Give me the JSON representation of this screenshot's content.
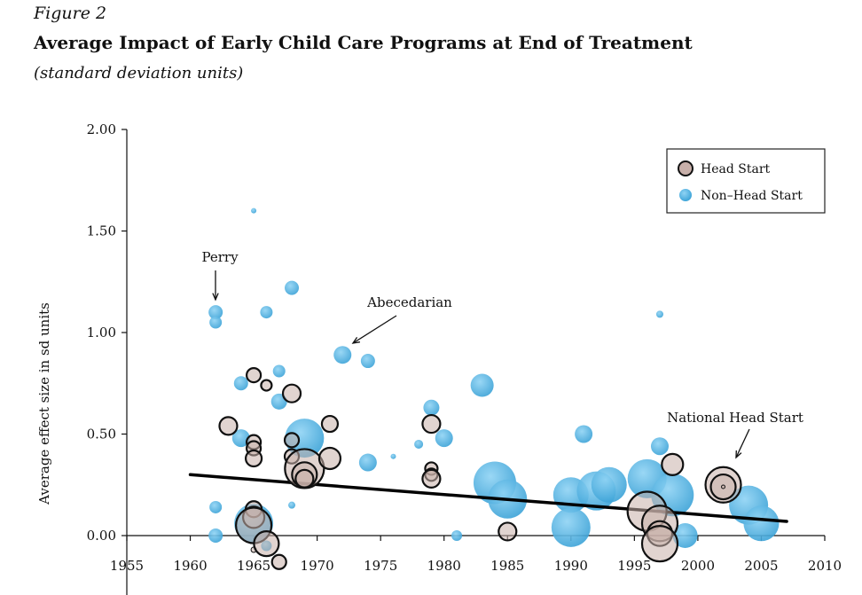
{
  "figure_label": "Figure 2",
  "title": "Average Impact of Early Child Care Programs at End of Treatment",
  "subtitle": "(standard deviation units)",
  "colors": {
    "head_start": "#c8b0aa",
    "non_head_start": "#4fb0e0",
    "trend": "#000000"
  },
  "chart_data": {
    "type": "scatter",
    "xlabel": "",
    "ylabel": "Average effect size in sd units",
    "xlim": [
      1955,
      2010
    ],
    "ylim": [
      0,
      2
    ],
    "xticks": [
      "1955",
      "1960",
      "1965",
      "1970",
      "1975",
      "1980",
      "1985",
      "1990",
      "1995",
      "2000",
      "2005",
      "2010"
    ],
    "yticks": [
      "0.00",
      "0.50",
      "1.00",
      "1.50",
      "2.00"
    ],
    "legend": {
      "position": "top-right",
      "entries": [
        "Head Start",
        "Non–Head Start"
      ]
    },
    "series": [
      {
        "name": "Non–Head Start",
        "points": [
          {
            "x": 1962,
            "y": 1.1,
            "size": 8
          },
          {
            "x": 1962,
            "y": 1.05,
            "size": 7
          },
          {
            "x": 1962,
            "y": 0.14,
            "size": 7
          },
          {
            "x": 1962,
            "y": 0.0,
            "size": 8
          },
          {
            "x": 1964,
            "y": 0.75,
            "size": 8
          },
          {
            "x": 1964,
            "y": 0.48,
            "size": 10
          },
          {
            "x": 1965,
            "y": 1.6,
            "size": 3
          },
          {
            "x": 1965,
            "y": 0.06,
            "size": 22
          },
          {
            "x": 1966,
            "y": 1.1,
            "size": 7
          },
          {
            "x": 1966,
            "y": -0.05,
            "size": 6
          },
          {
            "x": 1967,
            "y": 0.81,
            "size": 7
          },
          {
            "x": 1967,
            "y": 0.66,
            "size": 9
          },
          {
            "x": 1968,
            "y": 1.22,
            "size": 8
          },
          {
            "x": 1968,
            "y": 0.15,
            "size": 4
          },
          {
            "x": 1969,
            "y": 0.48,
            "size": 22
          },
          {
            "x": 1972,
            "y": 0.89,
            "size": 10
          },
          {
            "x": 1974,
            "y": 0.86,
            "size": 8
          },
          {
            "x": 1974,
            "y": 0.36,
            "size": 10
          },
          {
            "x": 1976,
            "y": 0.39,
            "size": 3
          },
          {
            "x": 1978,
            "y": 0.45,
            "size": 5
          },
          {
            "x": 1979,
            "y": 0.63,
            "size": 9
          },
          {
            "x": 1980,
            "y": 0.48,
            "size": 10
          },
          {
            "x": 1981,
            "y": 0.0,
            "size": 6
          },
          {
            "x": 1983,
            "y": 0.74,
            "size": 13
          },
          {
            "x": 1984,
            "y": 0.26,
            "size": 24
          },
          {
            "x": 1985,
            "y": 0.18,
            "size": 22
          },
          {
            "x": 1990,
            "y": 0.2,
            "size": 20
          },
          {
            "x": 1990,
            "y": 0.04,
            "size": 22
          },
          {
            "x": 1991,
            "y": 0.5,
            "size": 10
          },
          {
            "x": 1992,
            "y": 0.22,
            "size": 22
          },
          {
            "x": 1993,
            "y": 0.25,
            "size": 20
          },
          {
            "x": 1996,
            "y": 0.28,
            "size": 22
          },
          {
            "x": 1997,
            "y": 1.09,
            "size": 4
          },
          {
            "x": 1997,
            "y": 0.44,
            "size": 10
          },
          {
            "x": 1998,
            "y": 0.2,
            "size": 24
          },
          {
            "x": 1999,
            "y": 0.0,
            "size": 14
          },
          {
            "x": 2004,
            "y": 0.15,
            "size": 22
          },
          {
            "x": 2005,
            "y": 0.06,
            "size": 20
          }
        ]
      },
      {
        "name": "Head Start",
        "points": [
          {
            "x": 1963,
            "y": 0.54,
            "size": 10
          },
          {
            "x": 1965,
            "y": 0.79,
            "size": 8
          },
          {
            "x": 1966,
            "y": 0.74,
            "size": 6
          },
          {
            "x": 1965,
            "y": 0.46,
            "size": 8
          },
          {
            "x": 1965,
            "y": 0.43,
            "size": 8
          },
          {
            "x": 1965,
            "y": 0.38,
            "size": 9
          },
          {
            "x": 1965,
            "y": 0.13,
            "size": 9
          },
          {
            "x": 1965,
            "y": 0.09,
            "size": 12
          },
          {
            "x": 1965,
            "y": 0.05,
            "size": 20
          },
          {
            "x": 1965,
            "y": -0.07,
            "size": 3
          },
          {
            "x": 1966,
            "y": -0.04,
            "size": 14
          },
          {
            "x": 1967,
            "y": -0.13,
            "size": 8
          },
          {
            "x": 1968,
            "y": 0.7,
            "size": 10
          },
          {
            "x": 1968,
            "y": 0.47,
            "size": 8
          },
          {
            "x": 1968,
            "y": 0.39,
            "size": 8
          },
          {
            "x": 1969,
            "y": 0.33,
            "size": 22
          },
          {
            "x": 1969,
            "y": 0.3,
            "size": 14
          },
          {
            "x": 1969,
            "y": 0.28,
            "size": 10
          },
          {
            "x": 1971,
            "y": 0.55,
            "size": 9
          },
          {
            "x": 1971,
            "y": 0.38,
            "size": 12
          },
          {
            "x": 1979,
            "y": 0.55,
            "size": 10
          },
          {
            "x": 1979,
            "y": 0.33,
            "size": 7
          },
          {
            "x": 1979,
            "y": 0.3,
            "size": 7
          },
          {
            "x": 1979,
            "y": 0.28,
            "size": 10
          },
          {
            "x": 1985,
            "y": 0.02,
            "size": 10
          },
          {
            "x": 1996,
            "y": 0.12,
            "size": 22
          },
          {
            "x": 1997,
            "y": 0.06,
            "size": 20
          },
          {
            "x": 1997,
            "y": 0.01,
            "size": 14
          },
          {
            "x": 1997,
            "y": -0.04,
            "size": 20
          },
          {
            "x": 1998,
            "y": 0.35,
            "size": 12
          },
          {
            "x": 2002,
            "y": 0.25,
            "size": 20
          },
          {
            "x": 2002,
            "y": 0.24,
            "size": 14
          },
          {
            "x": 2002,
            "y": 0.24,
            "size": 2
          }
        ]
      }
    ],
    "trendline": {
      "x": [
        1960,
        2007
      ],
      "y": [
        0.3,
        0.07
      ]
    },
    "annotations": [
      {
        "text": "Perry",
        "x": 1962,
        "y": 1.1
      },
      {
        "text": "Abecedarian",
        "x": 1972,
        "y": 0.93
      },
      {
        "text": "National Head Start",
        "x": 2002,
        "y": 0.34
      }
    ]
  }
}
